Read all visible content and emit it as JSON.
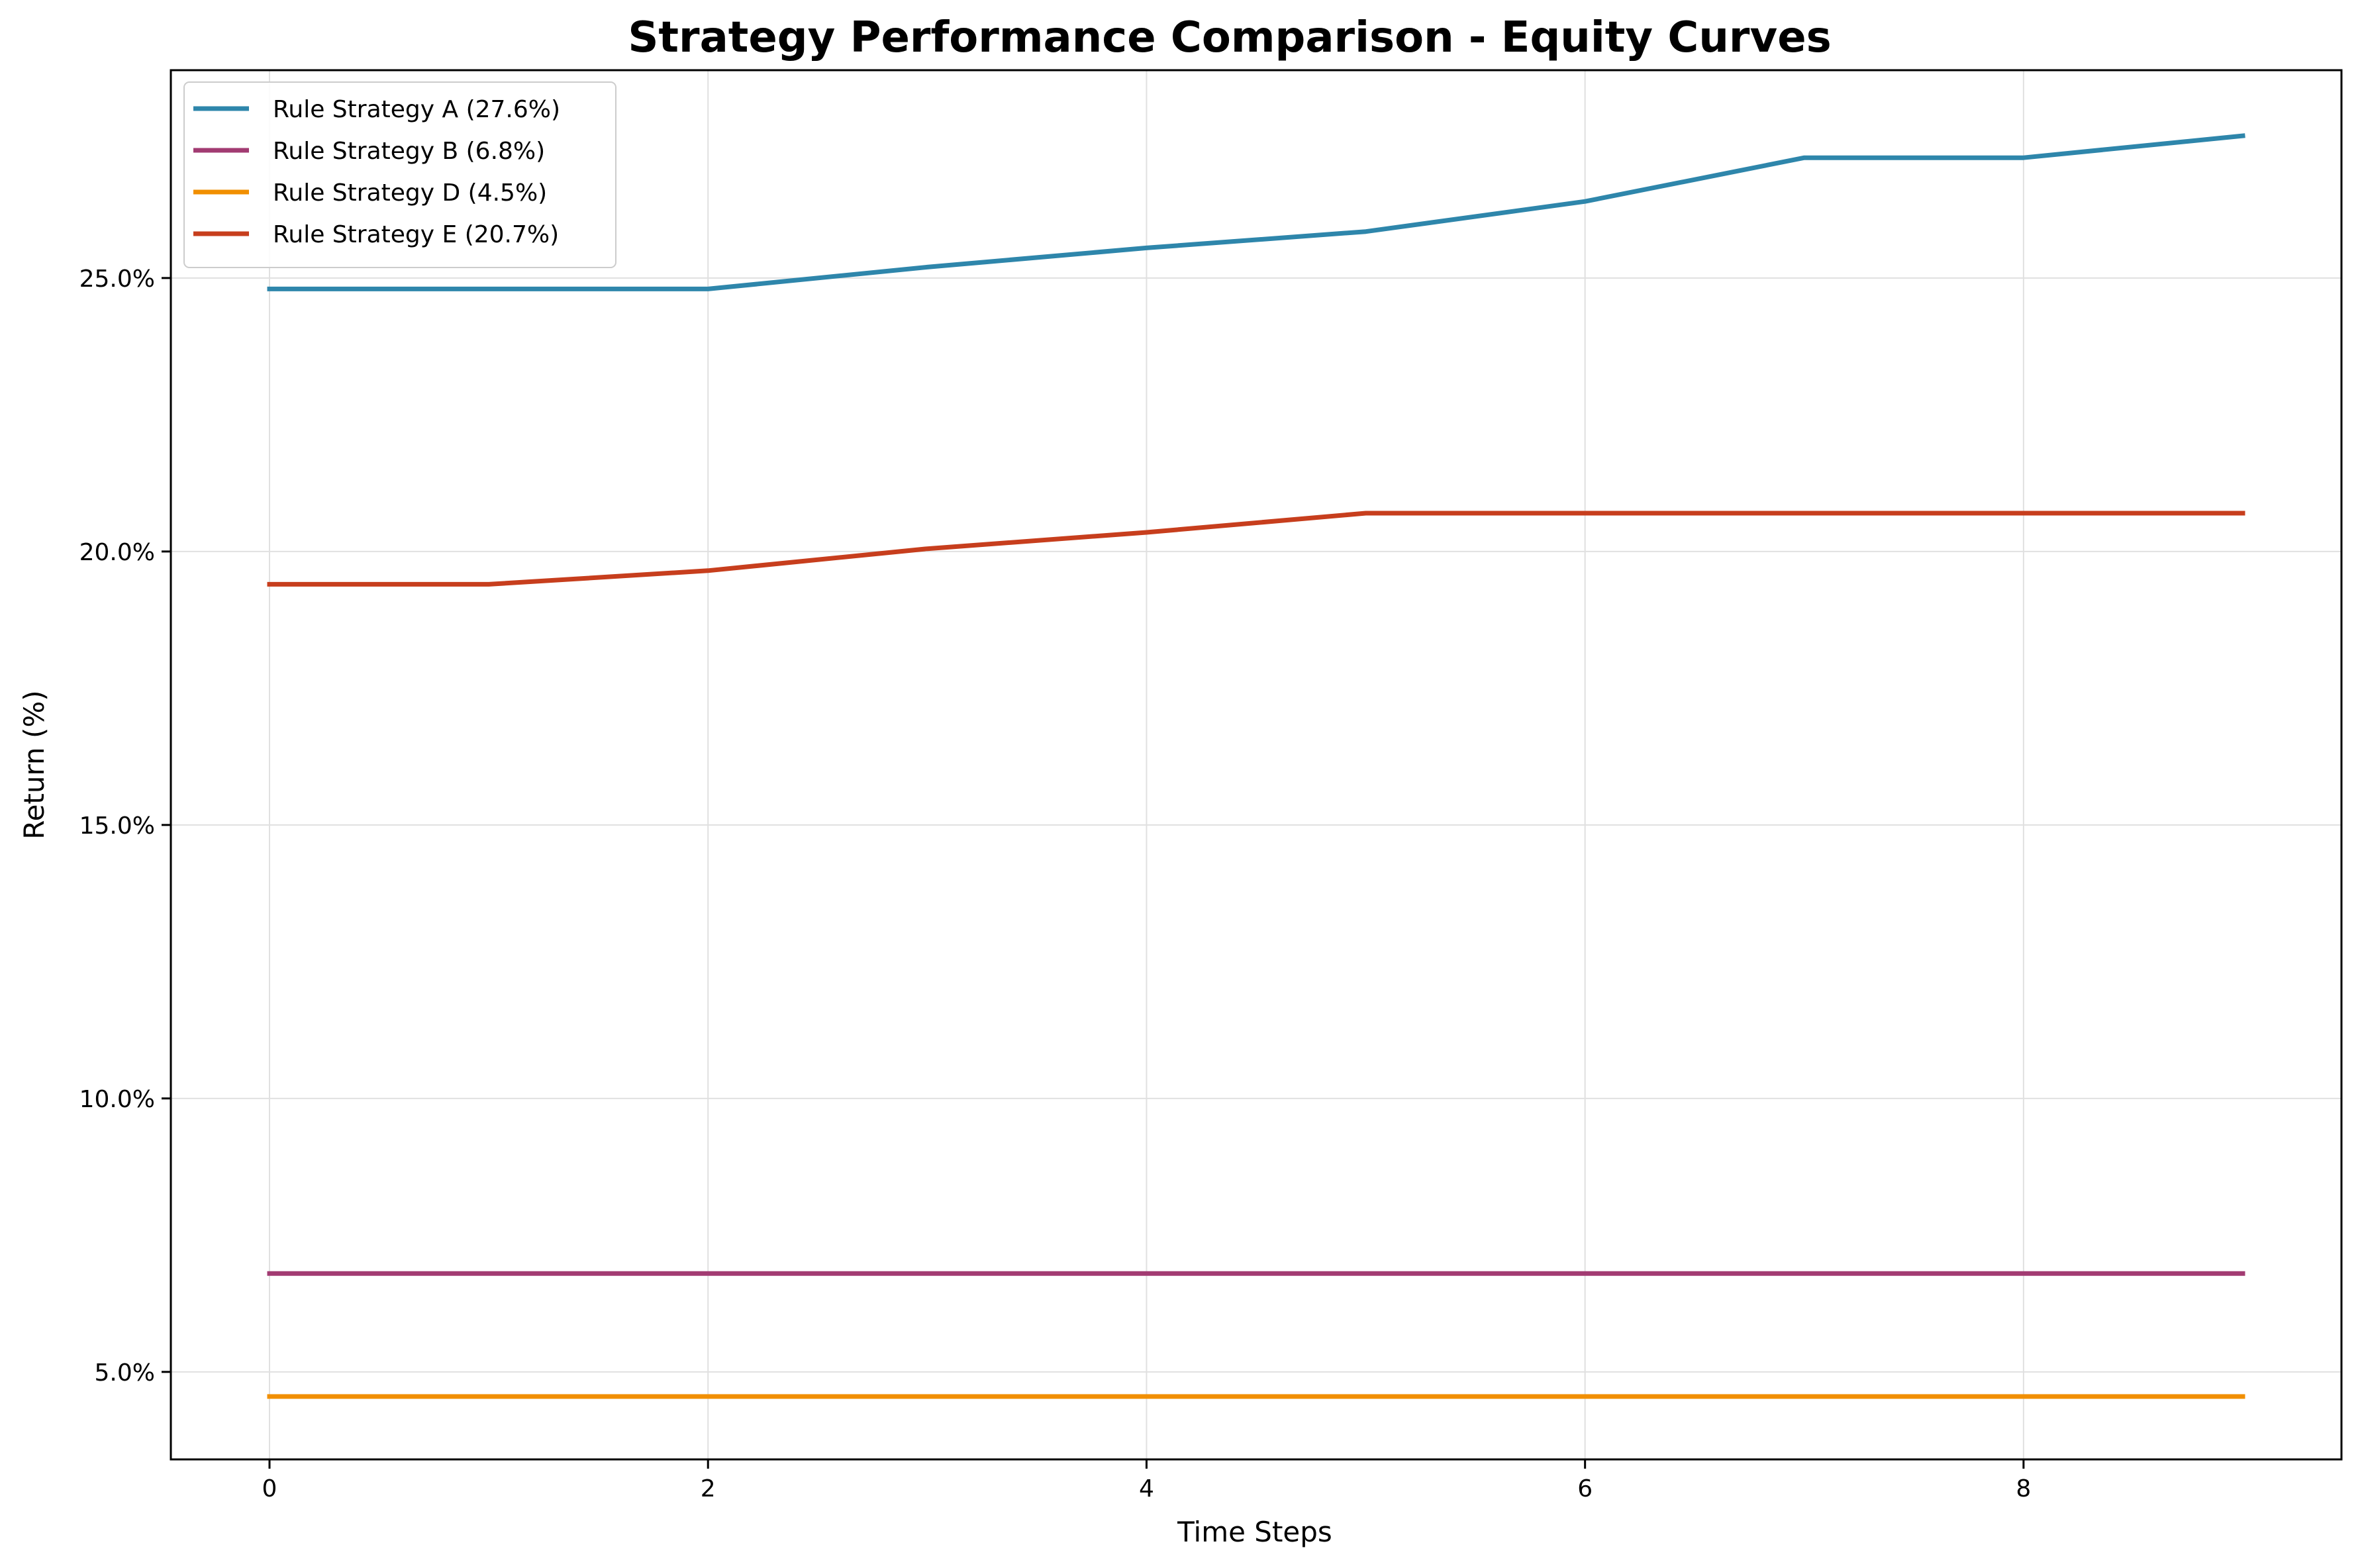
{
  "chart_data": {
    "type": "line",
    "title": "Strategy Performance Comparison - Equity Curves",
    "xlabel": "Time Steps",
    "ylabel": "Return (%)",
    "x": [
      0,
      1,
      2,
      3,
      4,
      5,
      6,
      7,
      8,
      9
    ],
    "xlim": [
      -0.45,
      9.45
    ],
    "ylim": [
      3.4,
      28.8
    ],
    "xticks": [
      0,
      2,
      4,
      6,
      8
    ],
    "xtick_labels": [
      "0",
      "2",
      "4",
      "6",
      "8"
    ],
    "yticks": [
      5,
      10,
      15,
      20,
      25
    ],
    "ytick_labels": [
      "5.0%",
      "10.0%",
      "15.0%",
      "20.0%",
      "25.0%"
    ],
    "grid": true,
    "legend_position": "top-left",
    "series": [
      {
        "name": "Rule Strategy A (27.6%)",
        "color": "#2E86AB",
        "values": [
          24.8,
          24.8,
          24.8,
          25.2,
          25.55,
          25.85,
          26.4,
          27.2,
          27.2,
          27.6
        ]
      },
      {
        "name": "Rule Strategy B (6.8%)",
        "color": "#A23B72",
        "values": [
          6.8,
          6.8,
          6.8,
          6.8,
          6.8,
          6.8,
          6.8,
          6.8,
          6.8,
          6.8
        ]
      },
      {
        "name": "Rule Strategy D (4.5%)",
        "color": "#F18F01",
        "values": [
          4.55,
          4.55,
          4.55,
          4.55,
          4.55,
          4.55,
          4.55,
          4.55,
          4.55,
          4.55
        ]
      },
      {
        "name": "Rule Strategy E (20.7%)",
        "color": "#C73E1D",
        "values": [
          19.4,
          19.4,
          19.65,
          20.05,
          20.35,
          20.7,
          20.7,
          20.7,
          20.7,
          20.7
        ]
      }
    ]
  }
}
